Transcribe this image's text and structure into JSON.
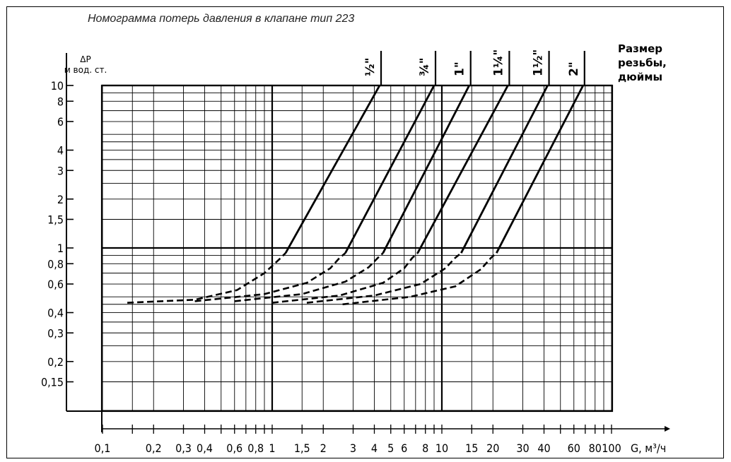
{
  "title": "Номограмма потерь давления в клапане тип 223",
  "chart_data": {
    "type": "line",
    "title": "Номограмма потерь давления в клапане тип 223",
    "ylabel": "ΔP",
    "ylabel_unit": "м вод. ст.",
    "xlabel": "G, м³/ч",
    "size_legend_title": "Размер резьбы, дюймы",
    "x_scale": "log",
    "y_scale": "log",
    "xlim": [
      0.1,
      100
    ],
    "ylim": [
      0.15,
      10
    ],
    "grid": true,
    "x_ticks": [
      {
        "v": 0.1,
        "label": "0,1"
      },
      {
        "v": 0.2,
        "label": "0,2"
      },
      {
        "v": 0.3,
        "label": "0,3"
      },
      {
        "v": 0.4,
        "label": "0,4"
      },
      {
        "v": 0.6,
        "label": "0,6"
      },
      {
        "v": 0.8,
        "label": "0,8"
      },
      {
        "v": 1,
        "label": "1"
      },
      {
        "v": 1.5,
        "label": "1,5"
      },
      {
        "v": 2,
        "label": "2"
      },
      {
        "v": 3,
        "label": "3"
      },
      {
        "v": 4,
        "label": "4"
      },
      {
        "v": 5,
        "label": "5"
      },
      {
        "v": 6,
        "label": "6"
      },
      {
        "v": 8,
        "label": "8"
      },
      {
        "v": 10,
        "label": "10"
      },
      {
        "v": 15,
        "label": "15"
      },
      {
        "v": 20,
        "label": "20"
      },
      {
        "v": 30,
        "label": "30"
      },
      {
        "v": 40,
        "label": "40"
      },
      {
        "v": 60,
        "label": "60"
      },
      {
        "v": 80,
        "label": "80"
      },
      {
        "v": 100,
        "label": "100"
      }
    ],
    "y_ticks": [
      {
        "v": 10,
        "label": "10"
      },
      {
        "v": 8,
        "label": "8"
      },
      {
        "v": 6,
        "label": "6"
      },
      {
        "v": 4,
        "label": "4"
      },
      {
        "v": 3,
        "label": "3"
      },
      {
        "v": 2,
        "label": "2"
      },
      {
        "v": 1.5,
        "label": "1,5"
      },
      {
        "v": 1,
        "label": "1"
      },
      {
        "v": 0.8,
        "label": "0,8"
      },
      {
        "v": 0.6,
        "label": "0,6"
      },
      {
        "v": 0.4,
        "label": "0,4"
      },
      {
        "v": 0.3,
        "label": "0,3"
      },
      {
        "v": 0.2,
        "label": "0,2"
      },
      {
        "v": 0.15,
        "label": "0,15"
      }
    ],
    "series": [
      {
        "name": "½\"",
        "dashed": [
          [
            0.14,
            0.46
          ],
          [
            0.35,
            0.48
          ],
          [
            0.62,
            0.55
          ],
          [
            0.9,
            0.7
          ],
          [
            1.1,
            0.85
          ],
          [
            1.2,
            0.93
          ]
        ],
        "solid": [
          [
            1.2,
            0.93
          ],
          [
            4.3,
            10
          ]
        ]
      },
      {
        "name": "¾\"",
        "dashed": [
          [
            0.35,
            0.47
          ],
          [
            0.9,
            0.52
          ],
          [
            1.6,
            0.61
          ],
          [
            2.2,
            0.75
          ],
          [
            2.5,
            0.87
          ],
          [
            2.7,
            0.93
          ]
        ],
        "solid": [
          [
            2.7,
            0.93
          ],
          [
            9.0,
            10
          ]
        ]
      },
      {
        "name": "1\"",
        "dashed": [
          [
            0.6,
            0.47
          ],
          [
            1.5,
            0.52
          ],
          [
            2.7,
            0.62
          ],
          [
            3.7,
            0.76
          ],
          [
            4.2,
            0.87
          ],
          [
            4.5,
            0.93
          ]
        ],
        "solid": [
          [
            4.5,
            0.93
          ],
          [
            14.5,
            10
          ]
        ]
      },
      {
        "name": "1¼\"",
        "dashed": [
          [
            1.0,
            0.46
          ],
          [
            2.5,
            0.51
          ],
          [
            4.5,
            0.61
          ],
          [
            6.0,
            0.75
          ],
          [
            6.7,
            0.87
          ],
          [
            7.2,
            0.93
          ]
        ],
        "solid": [
          [
            7.2,
            0.93
          ],
          [
            24.5,
            10
          ]
        ]
      },
      {
        "name": "1½\"",
        "dashed": [
          [
            1.6,
            0.46
          ],
          [
            4.0,
            0.51
          ],
          [
            7.5,
            0.6
          ],
          [
            10.5,
            0.75
          ],
          [
            12.0,
            0.87
          ],
          [
            13.0,
            0.93
          ]
        ],
        "solid": [
          [
            13.0,
            0.93
          ],
          [
            42.0,
            10
          ]
        ]
      },
      {
        "name": "2\"",
        "dashed": [
          [
            2.6,
            0.45
          ],
          [
            6.5,
            0.5
          ],
          [
            12.0,
            0.58
          ],
          [
            17.0,
            0.74
          ],
          [
            19.5,
            0.87
          ],
          [
            21.0,
            0.93
          ]
        ],
        "solid": [
          [
            21.0,
            0.93
          ],
          [
            68.0,
            10
          ]
        ]
      }
    ]
  }
}
